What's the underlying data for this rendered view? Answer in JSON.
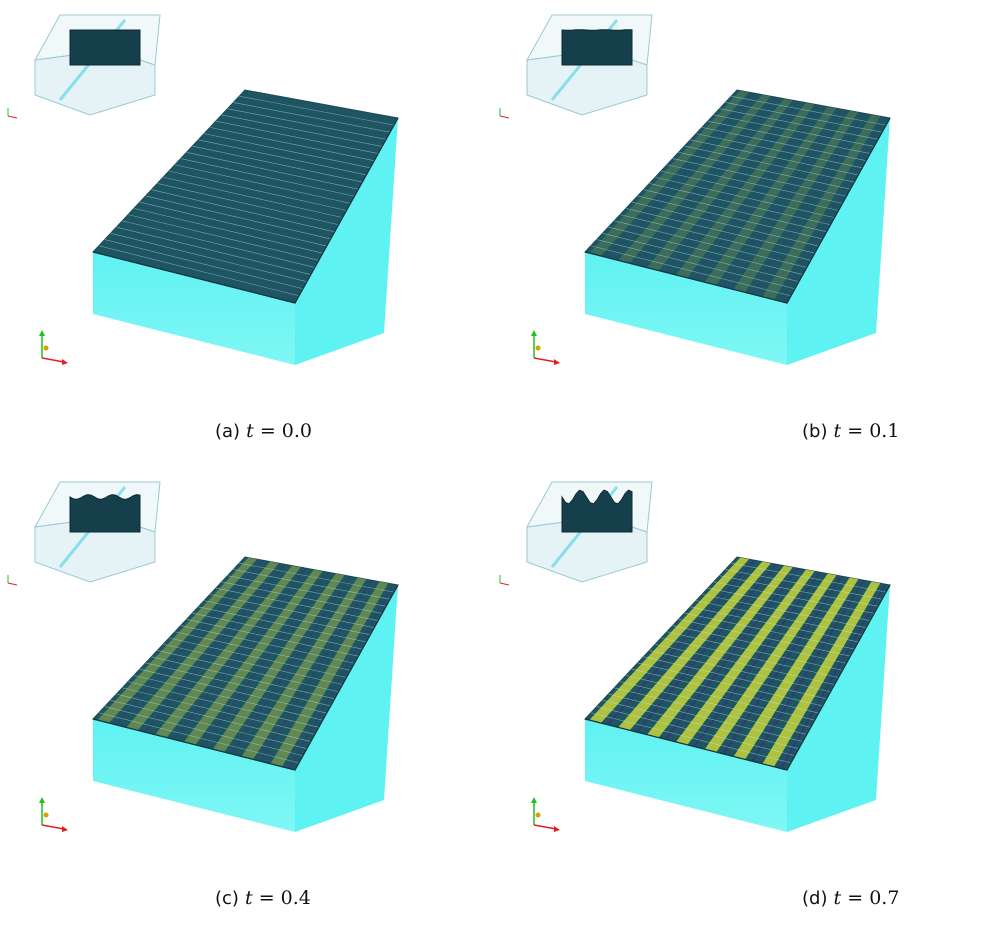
{
  "figure": {
    "panels": [
      {
        "label": "(a)",
        "variable": "t",
        "equals": "=",
        "value": "0.0",
        "wave": 0.0
      },
      {
        "label": "(b)",
        "variable": "t",
        "equals": "=",
        "value": "0.1",
        "wave": 0.05
      },
      {
        "label": "(c)",
        "variable": "t",
        "equals": "=",
        "value": "0.4",
        "wave": 0.35
      },
      {
        "label": "(d)",
        "variable": "t",
        "equals": "=",
        "value": "0.7",
        "wave": 1.0
      }
    ],
    "colors": {
      "box_side": "#5ff2f2",
      "box_top": "#1f5563",
      "wave_high": "#c9d63a",
      "wave_low": "#3b2e7a",
      "inset_glass": "#cfeaf0",
      "axis_x": "#e02020",
      "axis_y": "#20c020",
      "axis_z": "#d9a000"
    }
  }
}
